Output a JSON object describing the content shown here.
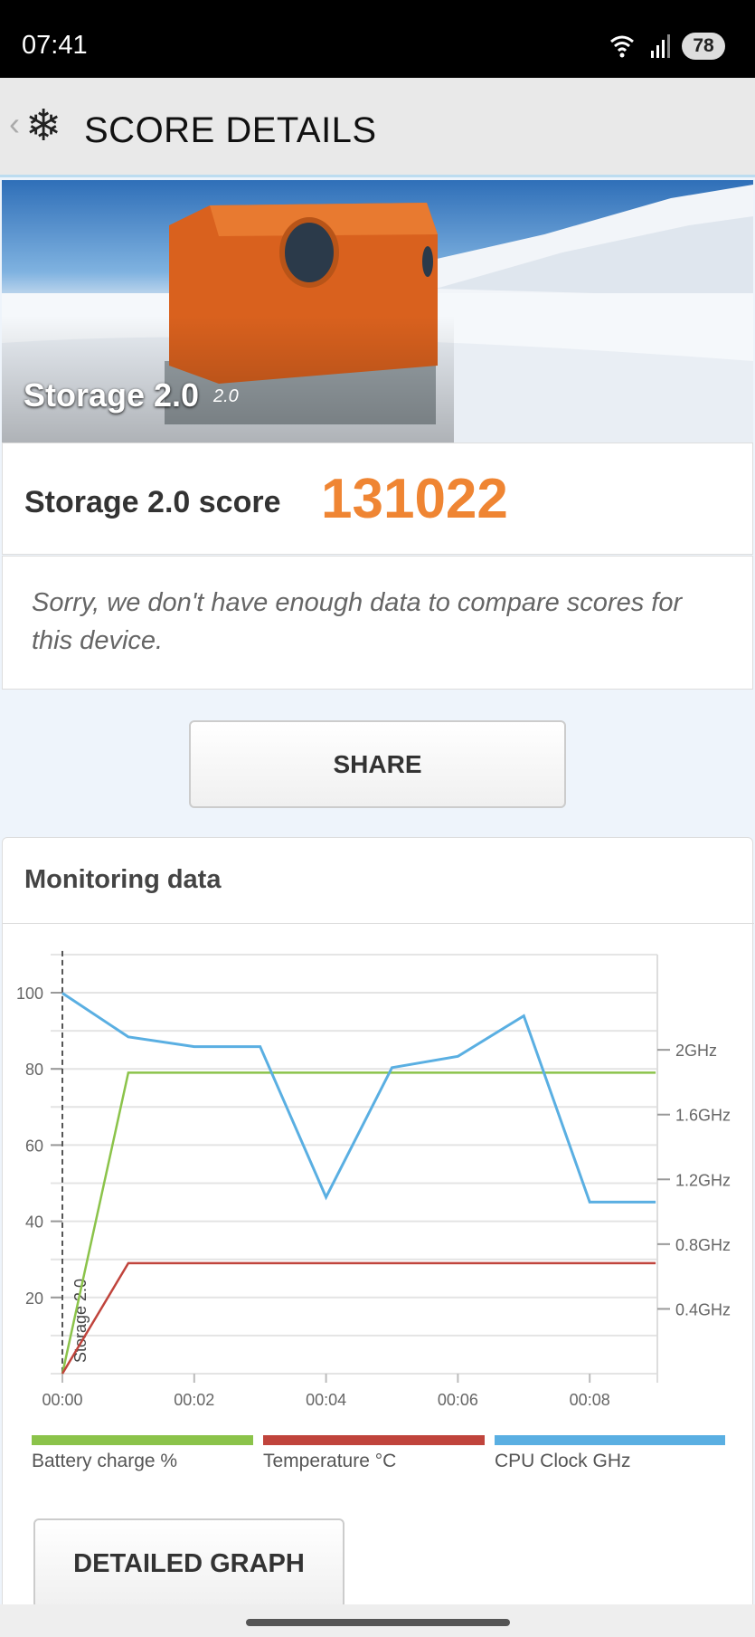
{
  "status_bar": {
    "time": "07:41",
    "battery": "78"
  },
  "header": {
    "title": "SCORE DETAILS",
    "back_icon": "chevron-left-icon",
    "logo_icon": "snowflake-icon"
  },
  "banner": {
    "title": "Storage 2.0",
    "version": "2.0"
  },
  "score": {
    "label": "Storage 2.0 score",
    "value": "131022",
    "value_color": "#ef8533"
  },
  "message": "Sorry, we don't have enough data to compare scores for this device.",
  "share_label": "SHARE",
  "monitoring": {
    "title": "Monitoring data",
    "detailed_label": "DETAILED GRAPH",
    "legend": [
      {
        "label": "Battery charge %",
        "color": "#8bc34a"
      },
      {
        "label": "Temperature °C",
        "color": "#c0443c"
      },
      {
        "label": "CPU Clock GHz",
        "color": "#5aafe2"
      }
    ]
  },
  "chart_data": {
    "type": "line",
    "x": [
      "00:00",
      "00:01",
      "00:02",
      "00:03",
      "00:04",
      "00:05",
      "00:06",
      "00:07",
      "00:08",
      "00:09"
    ],
    "x_tick_labels": [
      "00:00",
      "00:02",
      "00:04",
      "00:06",
      "00:08"
    ],
    "y_left_ticks": [
      "20",
      "40",
      "60",
      "80",
      "100"
    ],
    "y_left_range": [
      0,
      110
    ],
    "y_right_ticks": [
      "0.4GHz",
      "0.8GHz",
      "1.2GHz",
      "1.6GHz",
      "2GHz"
    ],
    "y_right_range_ghz": [
      0,
      2.59
    ],
    "marker_label": "Storage 2.0",
    "grid": true,
    "legend_placement": "bottom",
    "series": [
      {
        "name": "Battery charge %",
        "axis": "left",
        "color": "#8bc34a",
        "values": [
          0,
          79,
          79,
          79,
          79,
          79,
          79,
          79,
          79,
          79
        ]
      },
      {
        "name": "Temperature °C",
        "axis": "left",
        "color": "#c0443c",
        "values": [
          0,
          29,
          29,
          29,
          29,
          29,
          29,
          29,
          29,
          29
        ]
      },
      {
        "name": "CPU Clock GHz",
        "axis": "right",
        "color": "#5aafe2",
        "values": [
          2.35,
          2.08,
          2.02,
          2.02,
          1.09,
          1.89,
          1.96,
          2.21,
          1.06,
          1.06
        ]
      }
    ]
  }
}
